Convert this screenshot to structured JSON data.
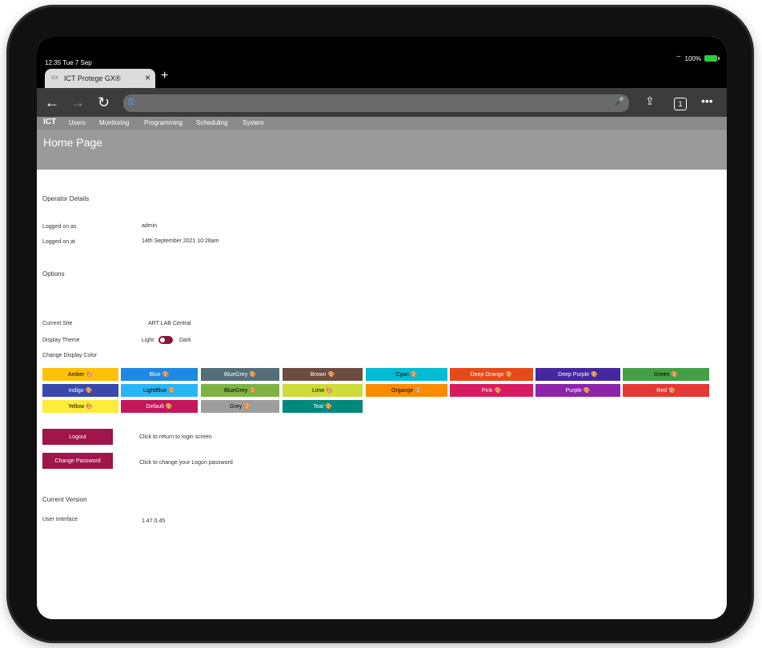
{
  "status": {
    "time": "12:35",
    "date": "Tue 7 Sep",
    "battery": "100%"
  },
  "browser": {
    "tab_title": "ICT Protege GX®",
    "favicon": "GX",
    "tab_count": "1"
  },
  "app": {
    "logo": "ICT",
    "menu": [
      "Users",
      "Monitoring",
      "Programming",
      "Scheduling",
      "System"
    ],
    "page_title": "Home Page"
  },
  "operator": {
    "section_title": "Operator Details",
    "logged_on_as_label": "Logged on as",
    "logged_on_as_value": "admin",
    "logged_on_at_label": "Logged on at",
    "logged_on_at_value": "14th September 2021 10:28am"
  },
  "options": {
    "section_title": "Options",
    "current_site_label": "Current Site",
    "current_site_value": "ART LAB Central",
    "display_theme_label": "Display Theme",
    "theme_light": "Light",
    "theme_dark": "Dark",
    "change_color_label": "Change Display Color"
  },
  "colors": [
    {
      "name": "Amber",
      "bg": "#FFC107",
      "fg": "#000"
    },
    {
      "name": "Blue",
      "bg": "#1E88E5",
      "fg": "#fff"
    },
    {
      "name": "BlueGrey",
      "bg": "#546E7A",
      "fg": "#fff"
    },
    {
      "name": "Brown",
      "bg": "#6D4C41",
      "fg": "#fff"
    },
    {
      "name": "Cyan",
      "bg": "#00BCD4",
      "fg": "#000"
    },
    {
      "name": "Deep Orange",
      "bg": "#E64A19",
      "fg": "#fff"
    },
    {
      "name": "Deep Purple",
      "bg": "#4527A0",
      "fg": "#fff"
    },
    {
      "name": "Green",
      "bg": "#43A047",
      "fg": "#000"
    },
    {
      "name": "Indigo",
      "bg": "#3949AB",
      "fg": "#fff"
    },
    {
      "name": "LightBlue",
      "bg": "#29B6F6",
      "fg": "#000"
    },
    {
      "name": "BlueGrey",
      "bg": "#7CB342",
      "fg": "#000"
    },
    {
      "name": "Lime",
      "bg": "#CDDC39",
      "fg": "#000"
    },
    {
      "name": "Organge",
      "bg": "#FB8C00",
      "fg": "#000"
    },
    {
      "name": "Pink",
      "bg": "#D81B60",
      "fg": "#fff"
    },
    {
      "name": "Purple",
      "bg": "#8E24AA",
      "fg": "#fff"
    },
    {
      "name": "Red",
      "bg": "#E53935",
      "fg": "#fff"
    },
    {
      "name": "Yellow",
      "bg": "#FFEB3B",
      "fg": "#000"
    },
    {
      "name": "Default",
      "bg": "#C2185B",
      "fg": "#fff"
    },
    {
      "name": "Grey",
      "bg": "#9E9E9E",
      "fg": "#000"
    },
    {
      "name": "Teal",
      "bg": "#00897B",
      "fg": "#fff"
    }
  ],
  "actions": {
    "logout_label": "Logout",
    "logout_hint": "Click to return to login screen",
    "change_password_label": "Change Password",
    "change_password_hint": "Click to change your Logon password"
  },
  "version": {
    "section_title": "Current Version",
    "ui_label": "User Interface",
    "ui_value": "1.47.0.45"
  }
}
